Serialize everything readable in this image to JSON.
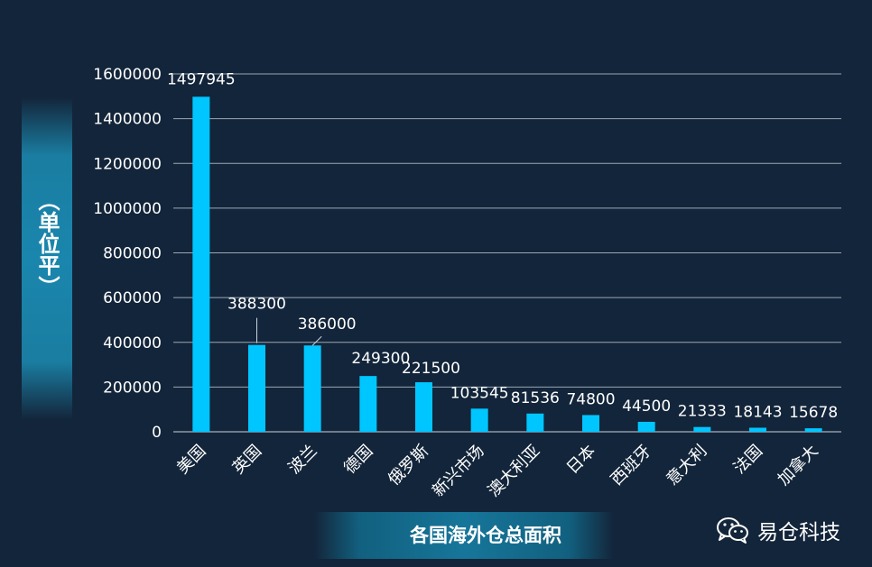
{
  "chart_data": {
    "type": "bar",
    "categories": [
      "美国",
      "英国",
      "波兰",
      "德国",
      "俄罗斯",
      "新兴市场",
      "澳大利亚",
      "日本",
      "西班牙",
      "意大利",
      "法国",
      "加拿大"
    ],
    "values": [
      1497945,
      388300,
      386000,
      249300,
      221500,
      103545,
      81536,
      74800,
      44500,
      21333,
      18143,
      15678
    ],
    "ylim": [
      0,
      1600000
    ],
    "yticks": [
      0,
      200000,
      400000,
      600000,
      800000,
      1000000,
      1200000,
      1400000,
      1600000
    ],
    "grid": true,
    "title": "各国海外仓总面积",
    "ylabel": "（单位平）",
    "bar_color": "#00c6ff"
  },
  "brand": {
    "name": "易仓科技",
    "icon": "wechat-icon"
  }
}
